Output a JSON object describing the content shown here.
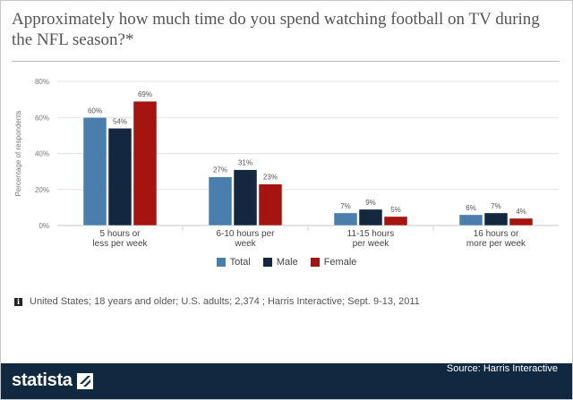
{
  "title": "Approximately how much time do you spend watching football on TV during the NFL season?*",
  "chart_data": {
    "type": "bar",
    "categories": [
      [
        "5 hours or",
        "less per week"
      ],
      [
        "6-10 hours per",
        "week"
      ],
      [
        "11-15 hours",
        "per week"
      ],
      [
        "16 hours or",
        "more per week"
      ]
    ],
    "series": [
      {
        "name": "Total",
        "color": "#4a7eac",
        "values": [
          60,
          27,
          7,
          6
        ]
      },
      {
        "name": "Male",
        "color": "#13283f",
        "values": [
          54,
          31,
          9,
          7
        ]
      },
      {
        "name": "Female",
        "color": "#a5140e",
        "values": [
          69,
          23,
          5,
          4
        ]
      }
    ],
    "ylabel": "Percentage of respondents",
    "ylim": [
      0,
      80
    ],
    "yticks": [
      0,
      20,
      40,
      60,
      80
    ],
    "value_suffix": "%",
    "grid": true
  },
  "legend": [
    "Total",
    "Male",
    "Female"
  ],
  "note": "United States; 18 years and older; U.S. adults; 2,374 ; Harris Interactive; Sept. 9-13, 2011",
  "info_icon_glyph": "i",
  "footer": {
    "brand": "statista",
    "source": "Source: Harris Interactive"
  }
}
